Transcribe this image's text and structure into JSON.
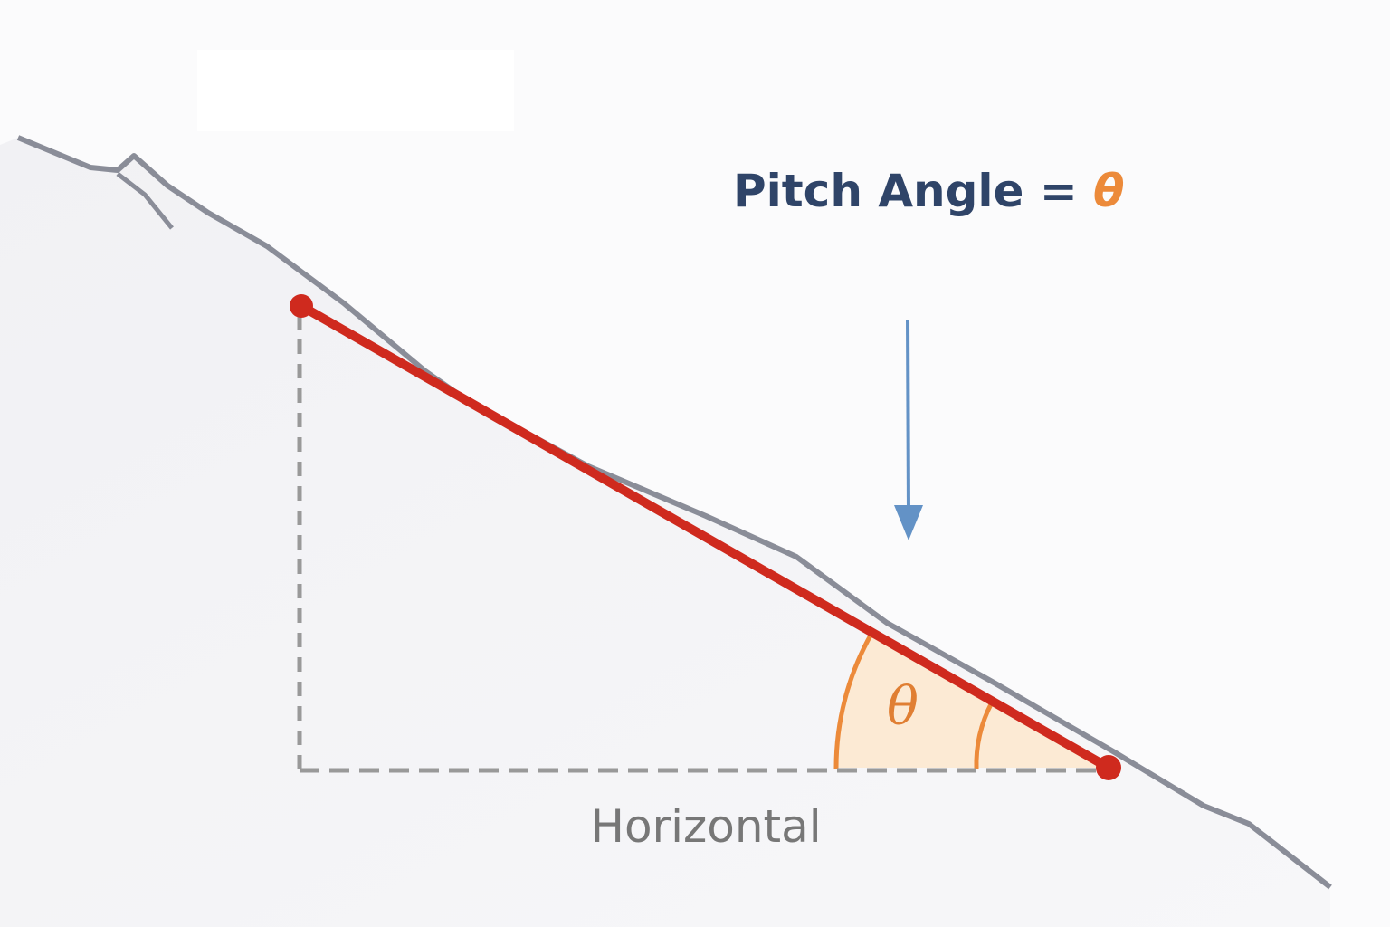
{
  "title": {
    "text": "Pitch Angle = ",
    "symbol": "θ"
  },
  "angle_label": "θ",
  "horizontal_label": "Horizontal",
  "colors": {
    "slope_line": "#cf2a1e",
    "ridge": "#8a8d98",
    "angle_fill": "#fde9cf",
    "angle_arc": "#ec8a3a",
    "arrow": "#6392c6",
    "dashed_guides": "#999999",
    "title": "#2f4468"
  }
}
